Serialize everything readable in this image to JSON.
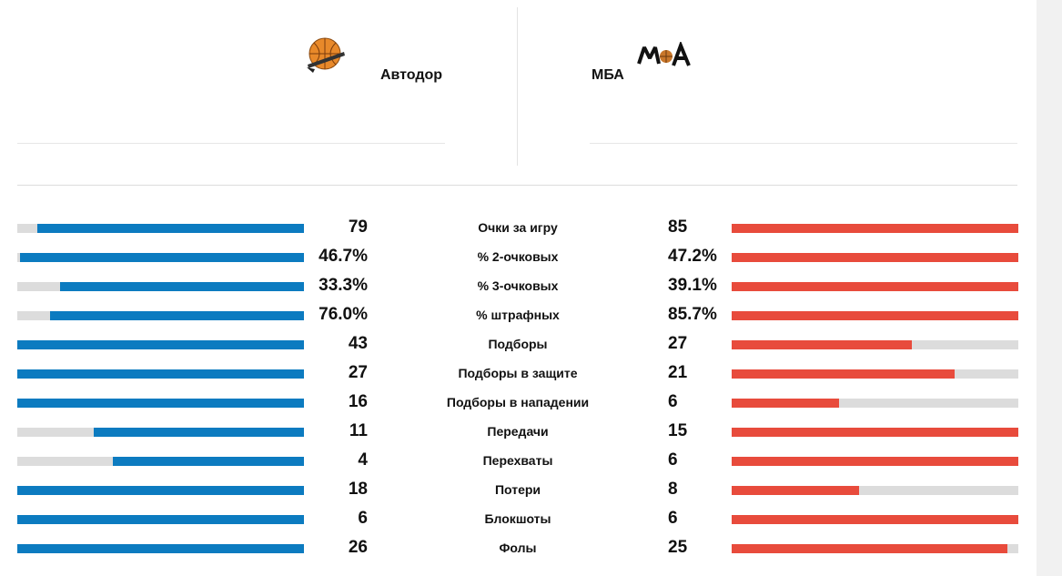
{
  "teams": {
    "home": {
      "name": "Автодор",
      "logo_icon": "avtodor-basketball-logo",
      "color": "#0c7bc0"
    },
    "away": {
      "name": "МБА",
      "logo_icon": "mba-logo",
      "color": "#e84b3c"
    }
  },
  "chart_data": {
    "type": "bar",
    "orientation": "horizontal-comparison",
    "series": [
      {
        "name": "Автодор",
        "color": "#0c7bc0"
      },
      {
        "name": "МБА",
        "color": "#e84b3c"
      }
    ],
    "rows": [
      {
        "label": "Очки за игру",
        "home": "79",
        "away": "85",
        "home_value": 79,
        "away_value": 85
      },
      {
        "label": "% 2-очковых",
        "home": "46.7%",
        "away": "47.2%",
        "home_value": 46.7,
        "away_value": 47.2
      },
      {
        "label": "% 3-очковых",
        "home": "33.3%",
        "away": "39.1%",
        "home_value": 33.3,
        "away_value": 39.1
      },
      {
        "label": "% штрафных",
        "home": "76.0%",
        "away": "85.7%",
        "home_value": 76.0,
        "away_value": 85.7
      },
      {
        "label": "Подборы",
        "home": "43",
        "away": "27",
        "home_value": 43,
        "away_value": 27
      },
      {
        "label": "Подборы в защите",
        "home": "27",
        "away": "21",
        "home_value": 27,
        "away_value": 21
      },
      {
        "label": "Подборы в нападении",
        "home": "16",
        "away": "6",
        "home_value": 16,
        "away_value": 6
      },
      {
        "label": "Передачи",
        "home": "11",
        "away": "15",
        "home_value": 11,
        "away_value": 15
      },
      {
        "label": "Перехваты",
        "home": "4",
        "away": "6",
        "home_value": 4,
        "away_value": 6
      },
      {
        "label": "Потери",
        "home": "18",
        "away": "8",
        "home_value": 18,
        "away_value": 8
      },
      {
        "label": "Блокшоты",
        "home": "6",
        "away": "6",
        "home_value": 6,
        "away_value": 6
      },
      {
        "label": "Фолы",
        "home": "26",
        "away": "25",
        "home_value": 26,
        "away_value": 25
      }
    ]
  }
}
